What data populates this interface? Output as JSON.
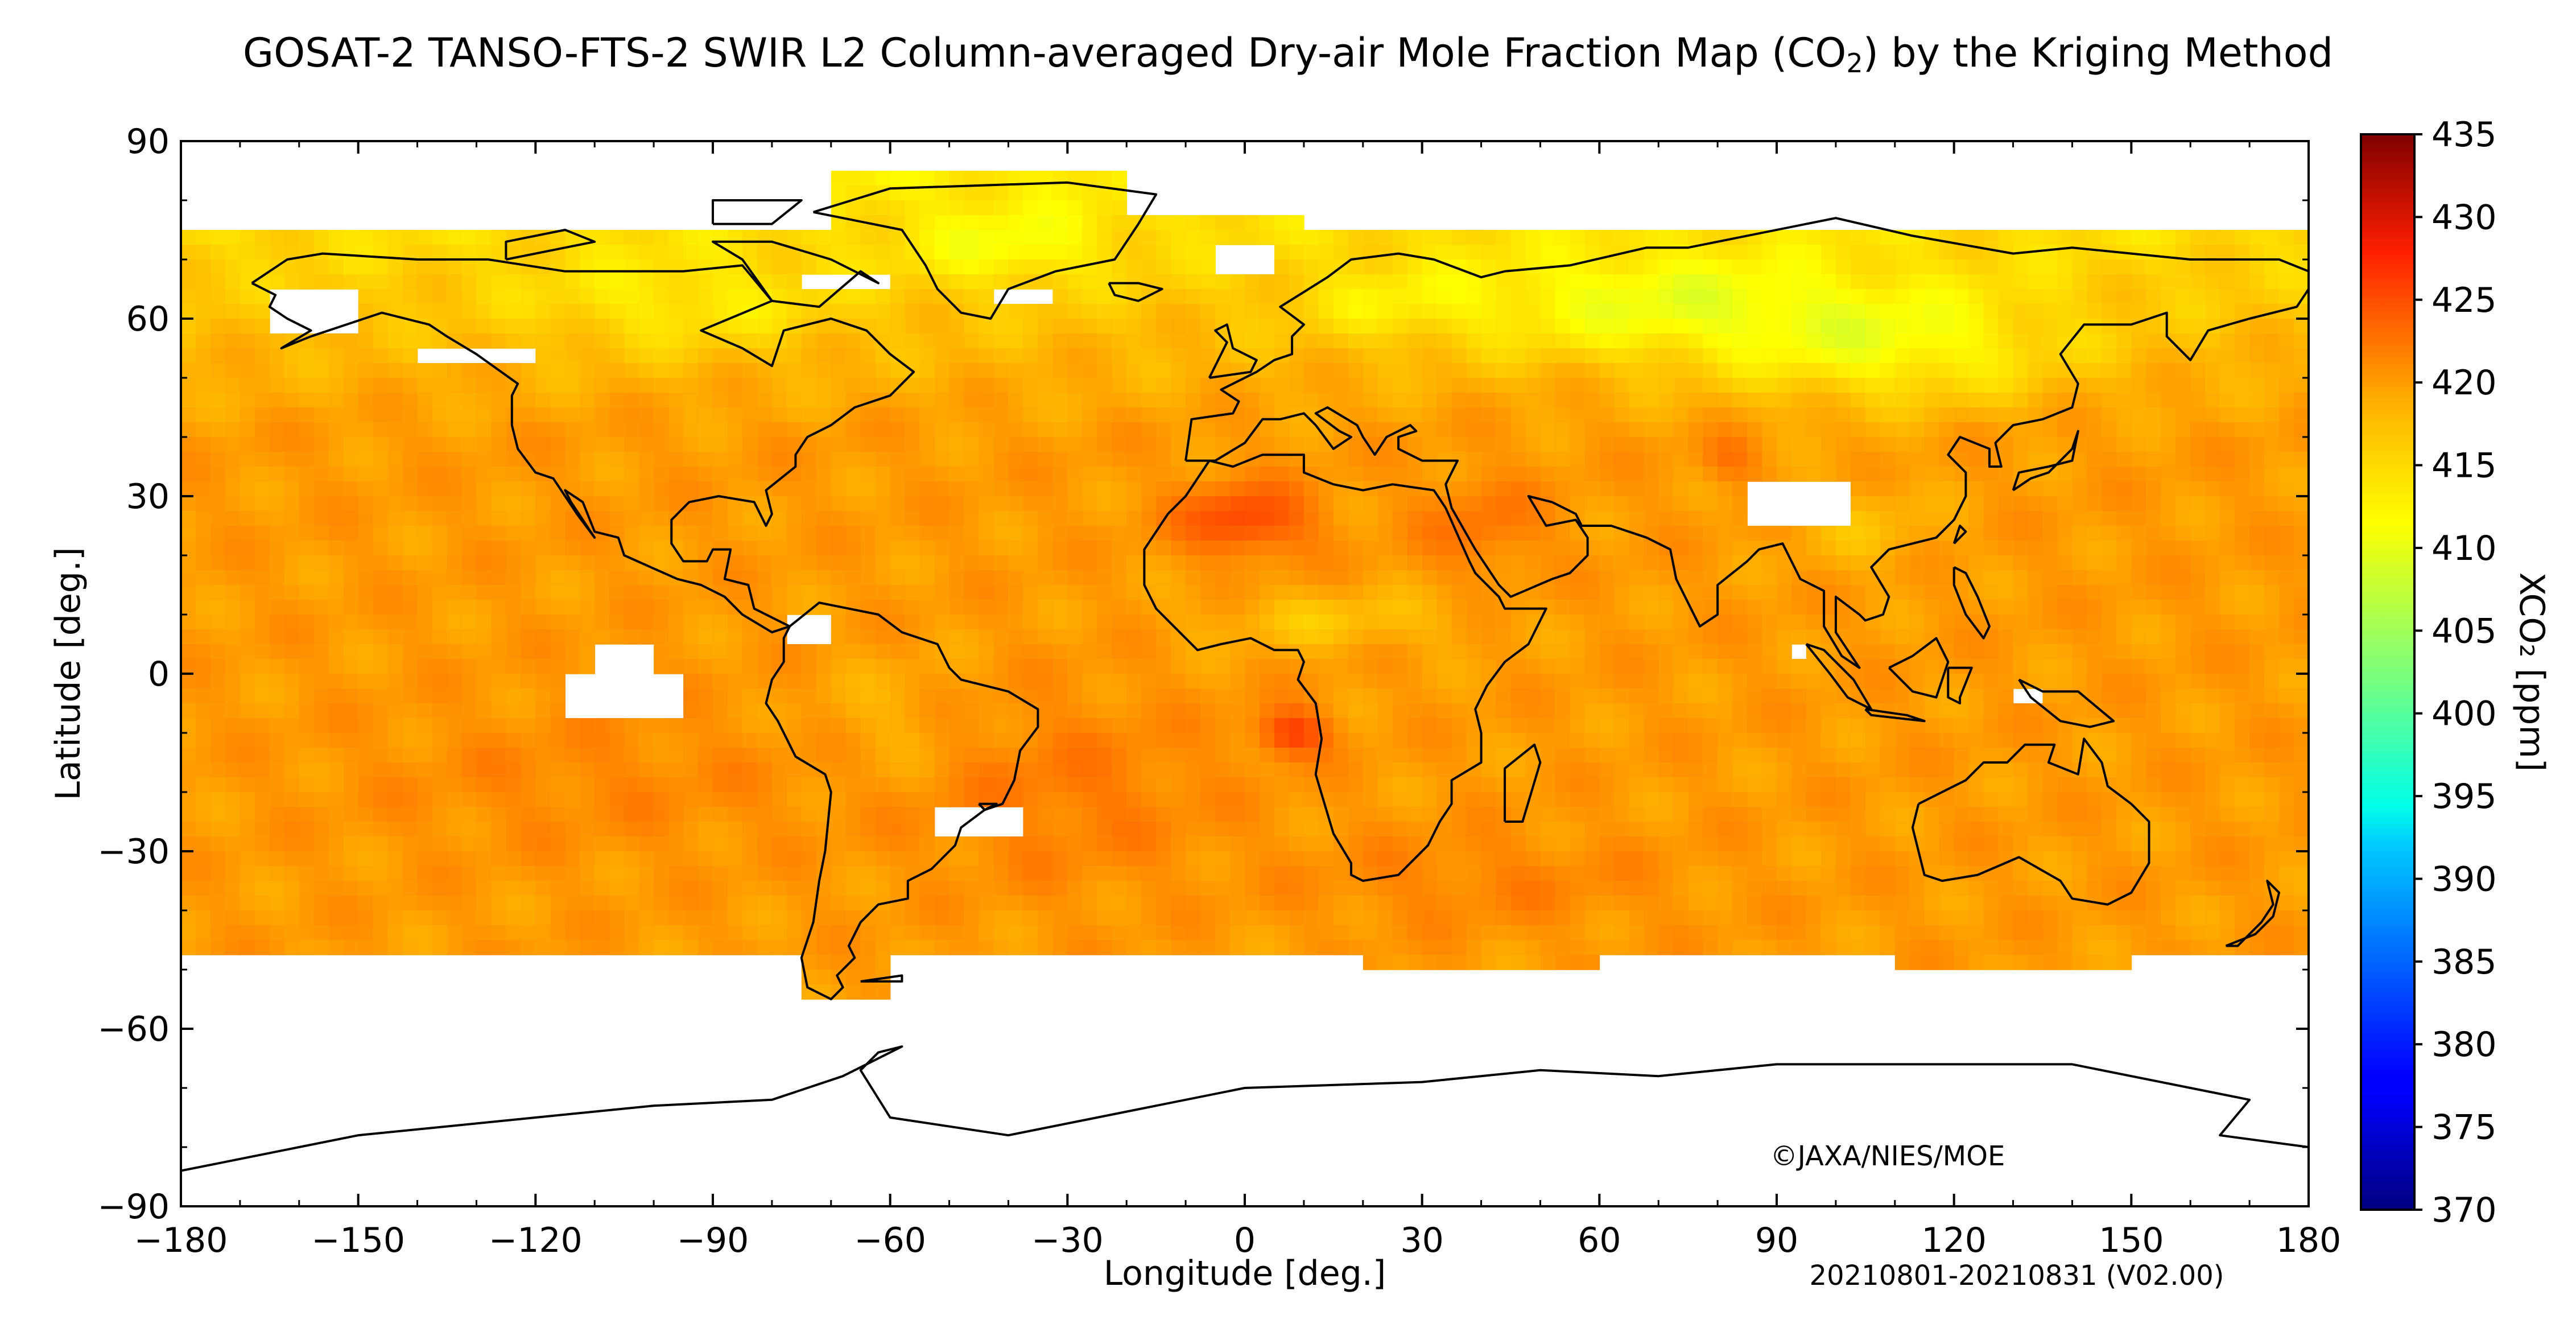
{
  "title": {
    "prefix": "GOSAT-2 TANSO-FTS-2 SWIR L2 Column-averaged Dry-air Mole Fraction Map (CO",
    "subscript": "2",
    "suffix": ") by the Kriging Method"
  },
  "map": {
    "xlabel": "Longitude [deg.]",
    "ylabel": "Latitude [deg.]",
    "xlim": [
      -180,
      180
    ],
    "ylim": [
      -90,
      90
    ],
    "xticks": [
      -180,
      -150,
      -120,
      -90,
      -60,
      -30,
      0,
      30,
      60,
      90,
      120,
      150,
      180
    ],
    "yticks": [
      90,
      60,
      30,
      0,
      -30,
      -60,
      -90
    ],
    "xtick_labels": [
      "−180",
      "−150",
      "−120",
      "−90",
      "−60",
      "−30",
      "0",
      "30",
      "60",
      "90",
      "120",
      "150",
      "180"
    ],
    "ytick_labels": [
      "90",
      "60",
      "30",
      "0",
      "−30",
      "−60",
      "−90"
    ],
    "copyright": "©JAXA/NIES/MOE",
    "date_range": "20210801-20210831 (V02.00)"
  },
  "colorbar": {
    "label": "XCO₂ [ppm]",
    "min": 370,
    "max": 435,
    "ticks": [
      435,
      430,
      425,
      420,
      415,
      410,
      405,
      400,
      395,
      390,
      385,
      380,
      375,
      370
    ],
    "colormap": "jet"
  }
}
